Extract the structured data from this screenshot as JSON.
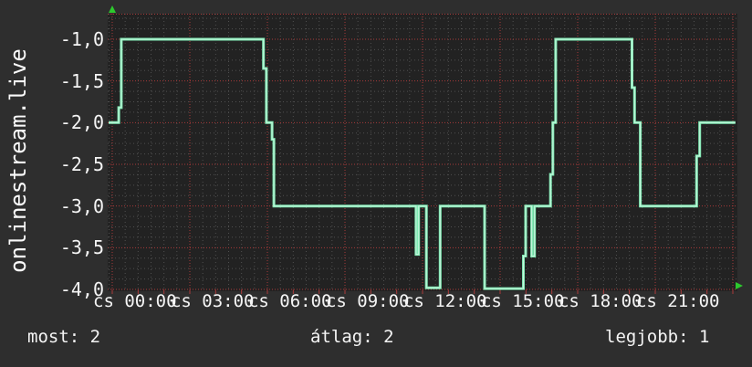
{
  "panel": {
    "bg_color": "#2e2e2e",
    "plot_bg_color": "#222222",
    "text_color": "#f5f5f5",
    "up_arrow_color": "#2dc92d",
    "right_arrow_color": "#2dc92d"
  },
  "side_label": "onlinestream.live",
  "stats": {
    "most": "most: 2",
    "atlag": "átlag: 2",
    "legjobb": "legjobb: 1"
  },
  "chart_data": {
    "type": "line",
    "title": "onlinestream.live",
    "summary": {
      "most": 2,
      "atlag": 2,
      "legjobb": 1
    },
    "line_color": "#7fe9b3",
    "line_core_color": "#c9f7df",
    "grid": {
      "minor_color": "#4f4f4f",
      "major_color": "#a83a3a",
      "minor_x_step_hours": 0.5,
      "minor_y_step": 0.125,
      "major_x_step_hours": 3,
      "major_y_step": 0.5
    },
    "x_axis": {
      "unit": "time-of-day",
      "range_hours": [
        0,
        24
      ],
      "tick_hours": [
        0,
        3,
        6,
        9,
        12,
        15,
        18,
        21
      ],
      "tick_labels": [
        "cs 00:00",
        "cs 03:00",
        "cs 06:00",
        "cs 09:00",
        "cs 12:00",
        "cs 15:00",
        "cs 18:00",
        "cs 21:00"
      ]
    },
    "y_axis": {
      "range": [
        -4.0,
        -1.0
      ],
      "tick_values": [
        -1.0,
        -1.5,
        -2.0,
        -2.5,
        -3.0,
        -3.5,
        -4.0
      ],
      "tick_labels": [
        "-1,0",
        "-1,5",
        "-2,0",
        "-2,5",
        "-3,0",
        "-3,5",
        "-4,0"
      ]
    },
    "series": [
      {
        "name": "onlinestream.live",
        "points": [
          [
            -0.14,
            -2.0
          ],
          [
            0.25,
            -2.0
          ],
          [
            0.25,
            -1.82
          ],
          [
            0.35,
            -1.82
          ],
          [
            0.35,
            -1.0
          ],
          [
            5.85,
            -1.0
          ],
          [
            5.85,
            -1.35
          ],
          [
            5.96,
            -1.35
          ],
          [
            5.96,
            -2.0
          ],
          [
            6.18,
            -2.0
          ],
          [
            6.18,
            -2.2
          ],
          [
            6.25,
            -2.2
          ],
          [
            6.25,
            -3.0
          ],
          [
            11.75,
            -3.0
          ],
          [
            11.75,
            -3.58
          ],
          [
            11.85,
            -3.58
          ],
          [
            11.85,
            -3.0
          ],
          [
            12.15,
            -3.0
          ],
          [
            12.15,
            -3.98
          ],
          [
            12.68,
            -3.98
          ],
          [
            12.68,
            -3.0
          ],
          [
            14.4,
            -3.0
          ],
          [
            14.4,
            -3.99
          ],
          [
            15.9,
            -3.99
          ],
          [
            15.9,
            -3.6
          ],
          [
            15.99,
            -3.6
          ],
          [
            15.99,
            -3.0
          ],
          [
            16.22,
            -3.0
          ],
          [
            16.22,
            -3.6
          ],
          [
            16.33,
            -3.6
          ],
          [
            16.33,
            -3.0
          ],
          [
            16.95,
            -3.0
          ],
          [
            16.95,
            -2.62
          ],
          [
            17.04,
            -2.62
          ],
          [
            17.04,
            -2.0
          ],
          [
            17.15,
            -2.0
          ],
          [
            17.15,
            -1.0
          ],
          [
            20.1,
            -1.0
          ],
          [
            20.1,
            -1.58
          ],
          [
            20.2,
            -1.58
          ],
          [
            20.2,
            -2.0
          ],
          [
            20.42,
            -2.0
          ],
          [
            20.42,
            -3.0
          ],
          [
            22.6,
            -3.0
          ],
          [
            22.6,
            -2.4
          ],
          [
            22.72,
            -2.4
          ],
          [
            22.72,
            -2.0
          ],
          [
            24.1,
            -2.0
          ]
        ]
      }
    ]
  }
}
